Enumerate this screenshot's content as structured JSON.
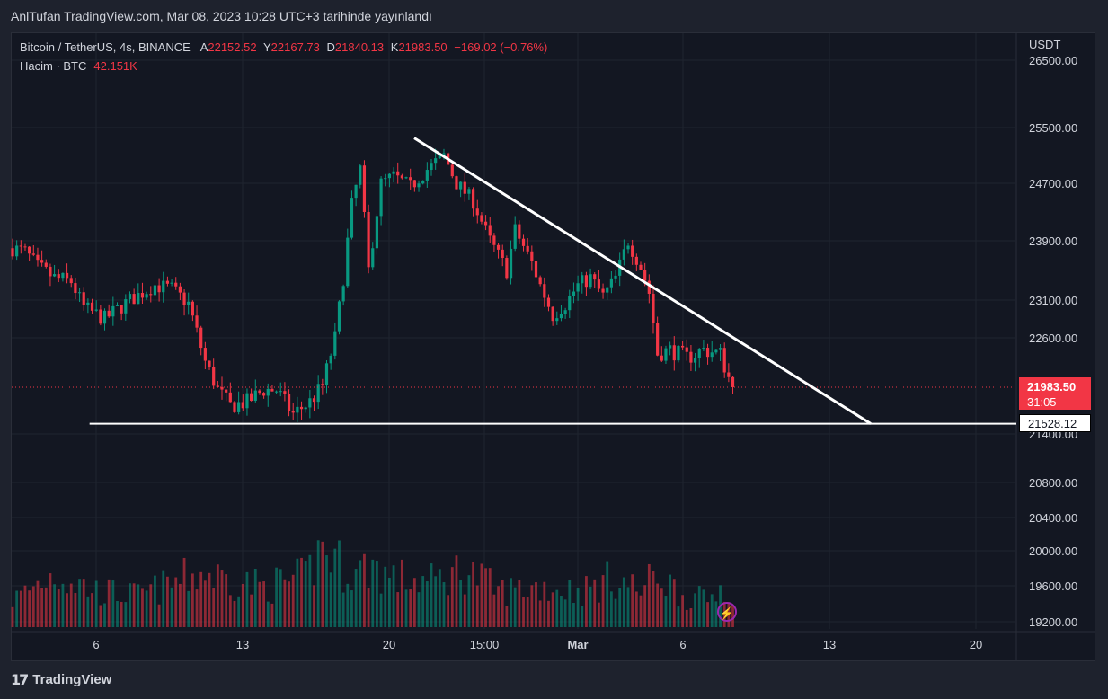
{
  "header": {
    "publisher_line": "AnlTufan TradingView.com, Mar 08, 2023 10:28 UTC+3 tarihinde yayınlandı"
  },
  "legend": {
    "symbol": "Bitcoin / TetherUS, 4s, BINANCE",
    "open_label": "A",
    "open": "22152.52",
    "high_label": "Y",
    "high": "22167.73",
    "low_label": "D",
    "low": "21840.13",
    "close_label": "K",
    "close": "21983.50",
    "change": "−169.02 (−0.76%)",
    "volume_label": "Hacim · BTC",
    "volume": "42.151K"
  },
  "price_scale": {
    "currency": "USDT"
  },
  "last_price": {
    "value": "21983.50",
    "countdown": "31:05"
  },
  "support_line_label": "21528.12",
  "footer": {
    "brand": "TradingView",
    "logo_glyph": "17"
  },
  "colors": {
    "up": "#089981",
    "down": "#f23645",
    "background": "#131722",
    "page": "#1e222d"
  },
  "chart_data": {
    "type": "candlestick",
    "symbol": "BTCUSDT",
    "timeframe": "4h",
    "y_ticks": [
      "26500.00",
      "25500.00",
      "24700.00",
      "23900.00",
      "23100.00",
      "22600.00",
      "21400.00",
      "20800.00",
      "20400.00",
      "20000.00",
      "19600.00",
      "19200.00"
    ],
    "x_ticks": [
      "6",
      "13",
      "20",
      "15:00",
      "Mar",
      "6",
      "13",
      "20"
    ],
    "price_path": [
      [
        0,
        23800
      ],
      [
        3,
        23750
      ],
      [
        6,
        23550
      ],
      [
        10,
        23400
      ],
      [
        14,
        23350
      ],
      [
        17,
        23000
      ],
      [
        22,
        22850
      ],
      [
        28,
        23100
      ],
      [
        34,
        23300
      ],
      [
        38,
        23250
      ],
      [
        42,
        23050
      ],
      [
        46,
        22300
      ],
      [
        49,
        21950
      ],
      [
        52,
        21750
      ],
      [
        56,
        21800
      ],
      [
        60,
        21950
      ],
      [
        63,
        21950
      ],
      [
        67,
        21650
      ],
      [
        71,
        21800
      ],
      [
        74,
        22000
      ],
      [
        77,
        22600
      ],
      [
        79,
        23400
      ],
      [
        81,
        24400
      ],
      [
        83,
        24900
      ],
      [
        85,
        23500
      ],
      [
        88,
        24700
      ],
      [
        91,
        24800
      ],
      [
        95,
        24650
      ],
      [
        99,
        24900
      ],
      [
        103,
        25100
      ],
      [
        106,
        24700
      ],
      [
        110,
        24450
      ],
      [
        114,
        23900
      ],
      [
        118,
        23500
      ],
      [
        120,
        24050
      ],
      [
        124,
        23600
      ],
      [
        126,
        23300
      ],
      [
        129,
        22900
      ],
      [
        132,
        23050
      ],
      [
        135,
        23300
      ],
      [
        138,
        23400
      ],
      [
        141,
        23150
      ],
      [
        144,
        23400
      ],
      [
        147,
        23900
      ],
      [
        150,
        23550
      ],
      [
        152,
        23200
      ],
      [
        154,
        22400
      ],
      [
        157,
        22450
      ],
      [
        161,
        22350
      ],
      [
        165,
        22450
      ],
      [
        169,
        22400
      ],
      [
        172,
        21950
      ]
    ],
    "volume_path": [
      [
        0,
        30
      ],
      [
        5,
        45
      ],
      [
        10,
        60
      ],
      [
        20,
        40
      ],
      [
        30,
        35
      ],
      [
        45,
        60
      ],
      [
        50,
        55
      ],
      [
        60,
        45
      ],
      [
        70,
        55
      ],
      [
        74,
        90
      ],
      [
        78,
        70
      ],
      [
        82,
        60
      ],
      [
        86,
        70
      ],
      [
        90,
        55
      ],
      [
        100,
        50
      ],
      [
        108,
        65
      ],
      [
        116,
        40
      ],
      [
        126,
        45
      ],
      [
        136,
        40
      ],
      [
        144,
        55
      ],
      [
        150,
        40
      ],
      [
        154,
        60
      ],
      [
        160,
        35
      ],
      [
        166,
        30
      ],
      [
        170,
        50
      ],
      [
        172,
        25
      ]
    ],
    "support_line": {
      "price": 21528.12,
      "x_range": [
        -2,
        230
      ]
    },
    "resistance_trendline": {
      "from": [
        105,
        25350
      ],
      "to": [
        230,
        21528.12
      ]
    },
    "last_price_line": 21983.5
  }
}
